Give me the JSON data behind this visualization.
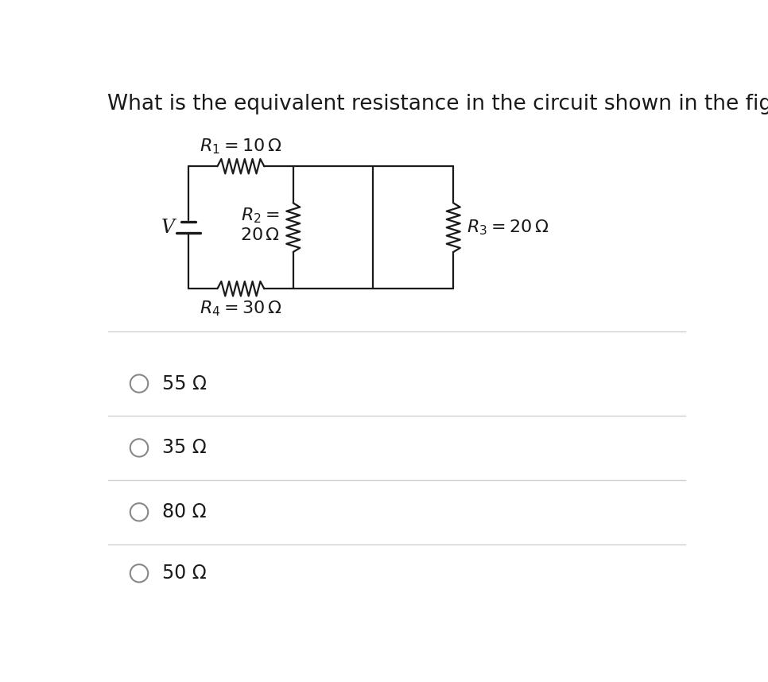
{
  "title": "What is the equivalent resistance in the circuit shown in the figure?",
  "title_fontsize": 19,
  "background_color": "#ffffff",
  "R1_label": "$R_1 = 10\\,\\Omega$",
  "R2_label": "$R_2 =$\n$20\\,\\Omega$",
  "R3_label": "$R_3 = 20\\,\\Omega$",
  "R4_label": "$R_4 = 30\\,\\Omega$",
  "V_label": "V",
  "options": [
    "55 Ω",
    "35 Ω",
    "80 Ω",
    "50 Ω"
  ],
  "line_color": "#1a1a1a",
  "text_color": "#1a1a1a",
  "option_fontsize": 17,
  "label_fontsize": 16,
  "divider_color": "#d0d0d0",
  "circuit": {
    "xl": 1.5,
    "xm": 3.2,
    "xr": 4.5,
    "xfr": 5.8,
    "yt": 7.2,
    "yb": 5.2
  }
}
